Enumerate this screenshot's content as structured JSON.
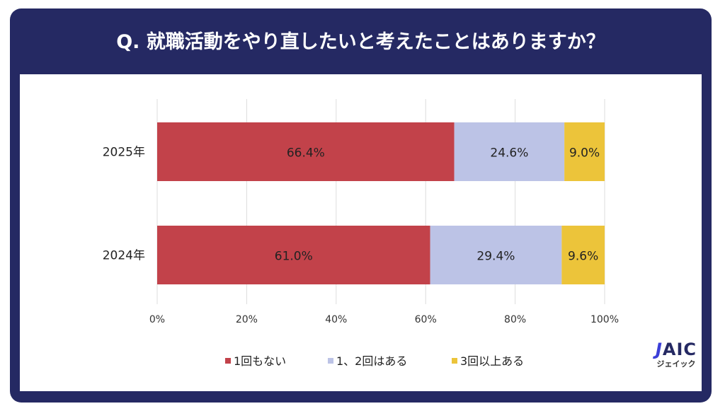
{
  "title": "Q. 就職活動をやり直したいと考えたことはありますか？",
  "chart_data": {
    "type": "bar",
    "orientation": "horizontal-stacked-100",
    "categories": [
      "2025年",
      "2024年"
    ],
    "series": [
      {
        "name": "1回もない",
        "color": "#c2424a",
        "values": [
          66.4,
          61.0
        ],
        "labels": [
          "66.4%",
          "61.0%"
        ]
      },
      {
        "name": "1、2回はある",
        "color": "#bcc3e6",
        "values": [
          24.6,
          29.4
        ],
        "labels": [
          "24.6%",
          "29.4%"
        ]
      },
      {
        "name": "3回以上ある",
        "color": "#ecc43a",
        "values": [
          9.0,
          9.6
        ],
        "labels": [
          "9.0%",
          "9.6%"
        ]
      }
    ],
    "xlim": [
      0,
      100
    ],
    "xticks": [
      "0%",
      "20%",
      "40%",
      "60%",
      "80%",
      "100%"
    ],
    "grid": true,
    "legend": "bottom"
  },
  "logo": {
    "text": "JAIC",
    "sub": "ジェイック"
  }
}
